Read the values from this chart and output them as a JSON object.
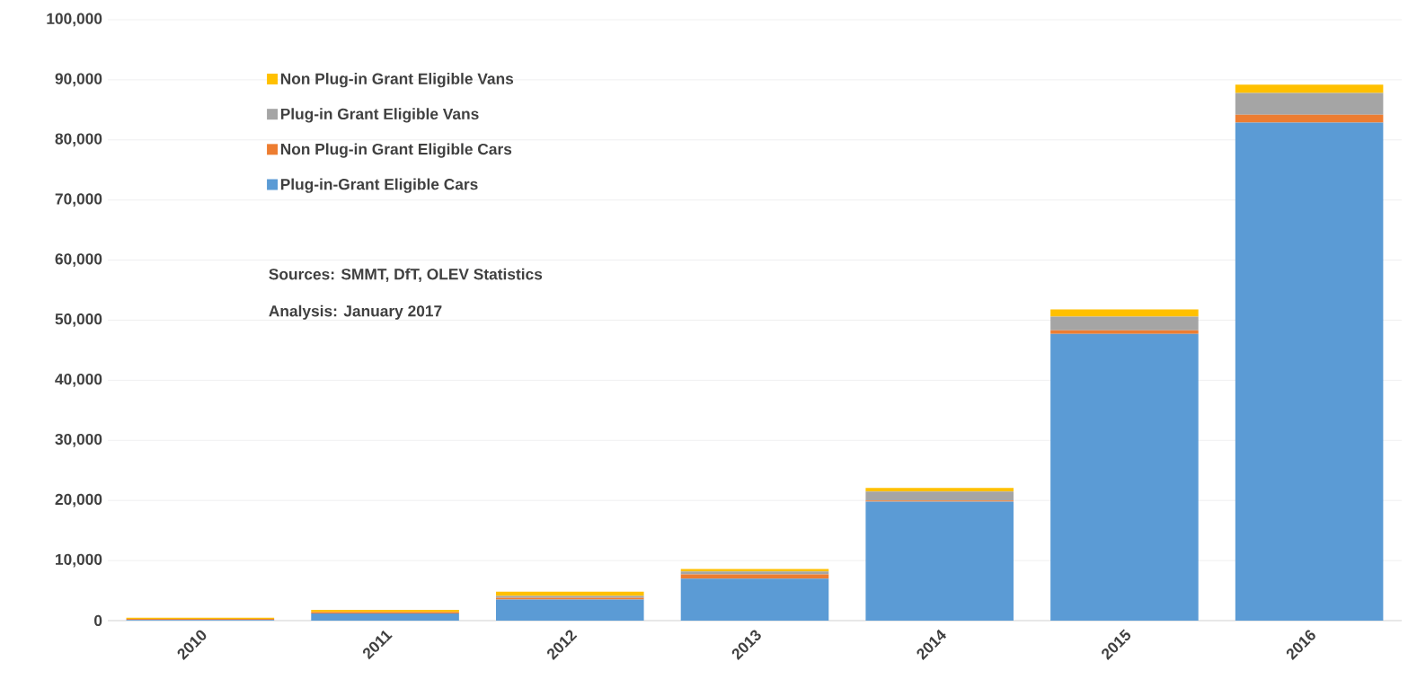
{
  "chart_data": {
    "type": "bar",
    "stacked": true,
    "categories": [
      "2010",
      "2011",
      "2012",
      "2013",
      "2014",
      "2015",
      "2016"
    ],
    "series": [
      {
        "name": "Plug-in-Grant Eligible Cars",
        "color": "#5b9bd5",
        "values": [
          100,
          1200,
          3500,
          7000,
          19800,
          47700,
          82900
        ]
      },
      {
        "name": "Non Plug-in Grant Eligible Cars",
        "color": "#ed7d31",
        "values": [
          200,
          200,
          300,
          700,
          200,
          600,
          1300
        ]
      },
      {
        "name": "Plug-in Grant Eligible Vans",
        "color": "#a5a5a5",
        "values": [
          0,
          null,
          300,
          500,
          1500,
          2300,
          3600
        ]
      },
      {
        "name": "Non Plug-in Grant Eligible Vans",
        "color": "#ffc000",
        "values": [
          200,
          400,
          700,
          400,
          600,
          1200,
          1400
        ]
      }
    ],
    "ylim": [
      0,
      100000
    ],
    "yticks": [
      0,
      {
        "value": 10000,
        "label": "10,000"
      },
      {
        "value": 20000,
        "label": "20,000"
      },
      {
        "value": 30000,
        "label": "30,000"
      },
      {
        "value": 40000,
        "label": "40,000"
      },
      {
        "value": 50000,
        "label": "50,000"
      },
      {
        "value": 60000,
        "label": "60,000"
      },
      {
        "value": 70000,
        "label": "70,000"
      },
      {
        "value": 80000,
        "label": "80,000"
      },
      {
        "value": 90000,
        "label": "90,000"
      },
      {
        "value": 100000,
        "label": "100,000"
      }
    ],
    "grid": "y",
    "legend": "top left",
    "annotations": [
      "Sources: SMMT, DfT, OLEV Statistics",
      "Analysis: January 2017"
    ]
  }
}
